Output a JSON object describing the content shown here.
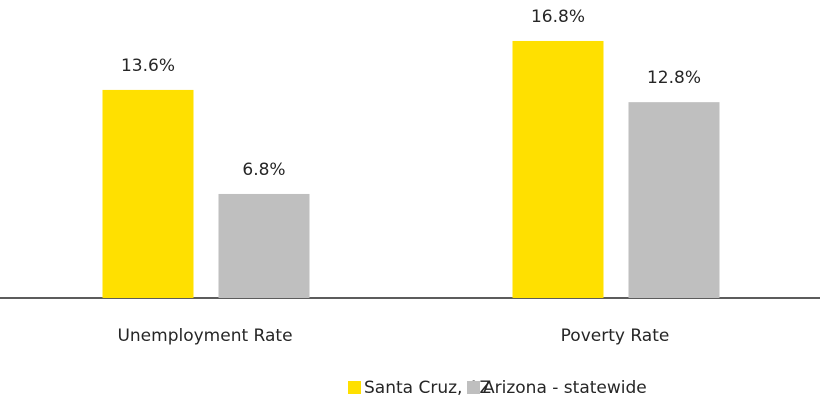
{
  "chart_data": {
    "type": "bar",
    "categories": [
      "Unemployment Rate",
      "Poverty Rate"
    ],
    "series": [
      {
        "name": "Santa Cruz, AZ",
        "color": "#FFE000",
        "values": [
          13.6,
          16.8
        ],
        "value_labels": [
          "13.6%",
          "16.8%"
        ]
      },
      {
        "name": "Arizona - statewide",
        "color": "#BFBFBF",
        "values": [
          6.8,
          12.8
        ],
        "value_labels": [
          "6.8%",
          "12.8%"
        ]
      }
    ],
    "legend": "bottom"
  }
}
